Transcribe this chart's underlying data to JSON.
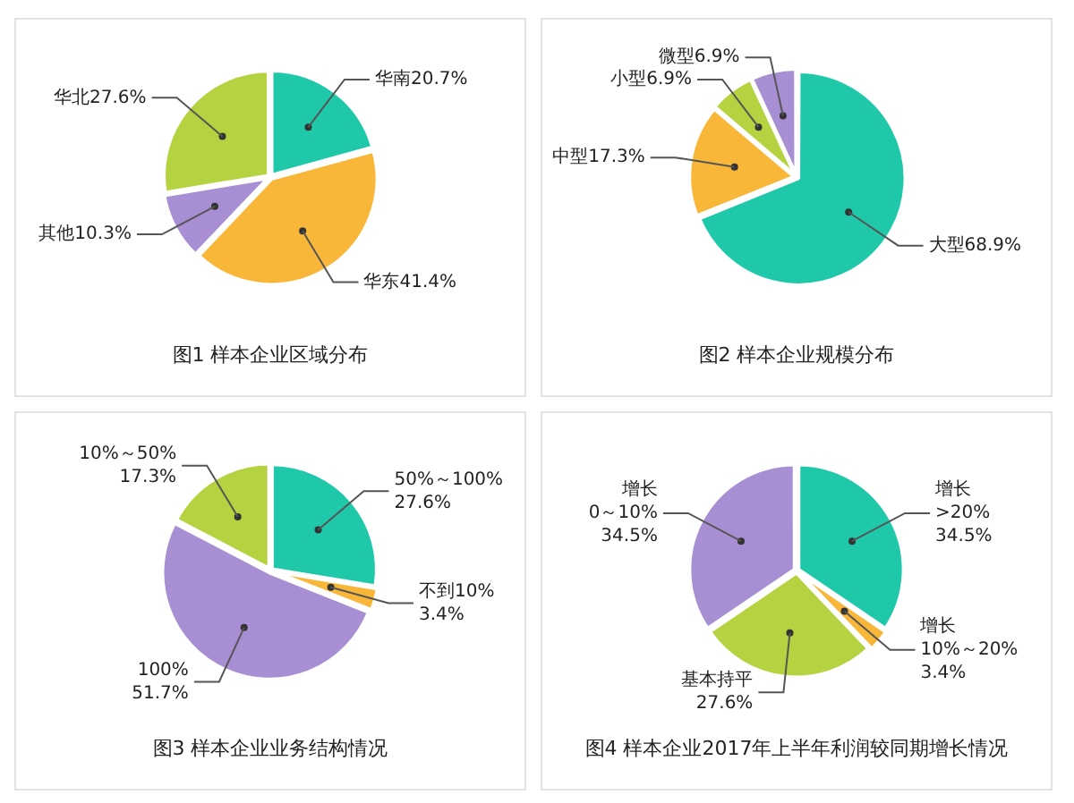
{
  "chart_data": [
    {
      "type": "pie",
      "title": "图1 样本企业区域分布",
      "categories": [
        "华南",
        "华东",
        "其他",
        "华北"
      ],
      "values": [
        20.7,
        41.4,
        10.3,
        27.6
      ],
      "value_labels": [
        "20.7%",
        "41.4%",
        "10.3%",
        "27.6%"
      ],
      "colors": [
        "#1fc8a9",
        "#f9b73a",
        "#a88fd4",
        "#b5d341"
      ]
    },
    {
      "type": "pie",
      "title": "图2 样本企业规模分布",
      "categories": [
        "大型",
        "中型",
        "小型",
        "微型"
      ],
      "values": [
        68.9,
        17.3,
        6.9,
        6.9
      ],
      "value_labels": [
        "68.9%",
        "17.3%",
        "6.9%",
        "6.9%"
      ],
      "colors": [
        "#1fc8a9",
        "#f9b73a",
        "#b5d341",
        "#a88fd4"
      ]
    },
    {
      "type": "pie",
      "title": "图3 样本企业业务结构情况",
      "categories": [
        "50%～100%",
        "不到10%",
        "100%",
        "10%～50%"
      ],
      "values": [
        27.6,
        3.4,
        51.7,
        17.3
      ],
      "value_labels": [
        "27.6%",
        "3.4%",
        "51.7%",
        "17.3%"
      ],
      "colors": [
        "#1fc8a9",
        "#f9b73a",
        "#a88fd4",
        "#b5d341"
      ]
    },
    {
      "type": "pie",
      "title": "图4 样本企业2017年上半年利润较同期增长情况",
      "categories": [
        "增长\n>20%",
        "增长\n10%～20%",
        "基本持平",
        "增长\n0～10%"
      ],
      "values": [
        34.5,
        3.4,
        27.6,
        34.5
      ],
      "value_labels": [
        "34.5%",
        "3.4%",
        "27.6%",
        "34.5%"
      ],
      "colors": [
        "#1fc8a9",
        "#f9b73a",
        "#b5d341",
        "#a88fd4"
      ]
    }
  ]
}
